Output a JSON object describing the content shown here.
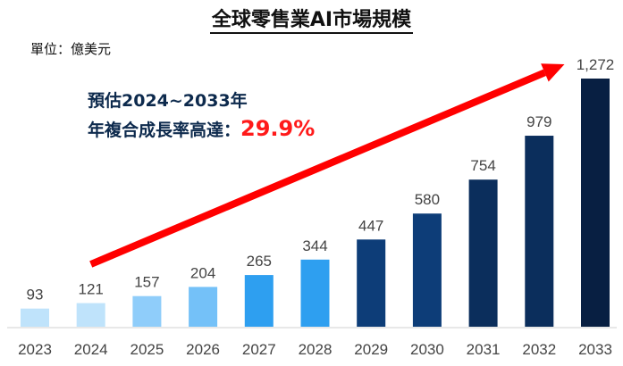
{
  "title": "全球零售業AI市場規模",
  "unit_label": "單位：億美元",
  "annotation": {
    "line1": "預估2024~2033年",
    "line2": "年複合成長率高達：",
    "rate": "29.9%"
  },
  "chart_data": {
    "type": "bar",
    "title": "全球零售業AI市場規模",
    "xlabel": "",
    "ylabel": "",
    "categories": [
      "2023",
      "2024",
      "2025",
      "2026",
      "2027",
      "2028",
      "2029",
      "2030",
      "2031",
      "2032",
      "2033"
    ],
    "values": [
      93,
      121,
      157,
      204,
      265,
      344,
      447,
      580,
      754,
      979,
      1272
    ],
    "value_labels": [
      "93",
      "121",
      "157",
      "204",
      "265",
      "344",
      "447",
      "580",
      "754",
      "979",
      "1,272"
    ],
    "colors": [
      "#bfe3fb",
      "#bfe3fb",
      "#8fcdfa",
      "#74c1f8",
      "#2e9ff0",
      "#2e9ff0",
      "#0d3d78",
      "#0d3d78",
      "#0b2e5c",
      "#0b2e5c",
      "#081f42"
    ],
    "trend_arrow_color": "#ff0000",
    "grid": false,
    "legend": "none"
  }
}
